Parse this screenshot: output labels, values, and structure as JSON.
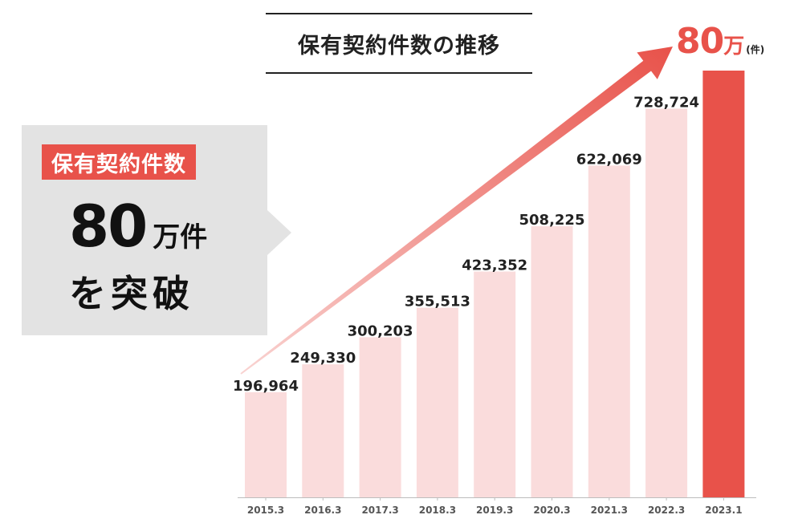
{
  "chart_data": {
    "type": "bar",
    "title": "保有契約件数の推移",
    "categories": [
      "2015.3",
      "2016.3",
      "2017.3",
      "2018.3",
      "2019.3",
      "2020.3",
      "2021.3",
      "2022.3",
      "2023.1"
    ],
    "values": [
      196964,
      249330,
      300203,
      355513,
      423352,
      508225,
      622069,
      728724,
      800000
    ],
    "data_labels": [
      "196,964",
      "249,330",
      "300,203",
      "355,513",
      "423,352",
      "508,225",
      "622,069",
      "728,724",
      ""
    ],
    "ylim": [
      0,
      800000
    ],
    "highlight_index": 8,
    "highlight_label": {
      "value": "80",
      "unit": "万",
      "suffix": "(件)"
    },
    "colors": {
      "bar": "#fadcdc",
      "highlight": "#e8524a",
      "arrow": "#e8524a",
      "text": "#222222"
    }
  },
  "callout": {
    "tag": "保有契約件数",
    "number": "80",
    "unit": "万件",
    "line3": "を突破"
  }
}
